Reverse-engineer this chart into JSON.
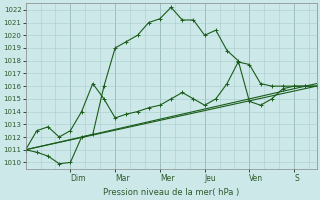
{
  "xlabel": "Pression niveau de la mer( hPa )",
  "background_color": "#cce8e8",
  "grid_color": "#aacccc",
  "line_color": "#1a5c1a",
  "ylim": [
    1009.5,
    1022.5
  ],
  "yticks": [
    1010,
    1011,
    1012,
    1013,
    1014,
    1015,
    1016,
    1017,
    1018,
    1019,
    1020,
    1021,
    1022
  ],
  "day_labels": [
    "Dim",
    "Mar",
    "Mer",
    "Jeu",
    "Ven",
    "S"
  ],
  "day_x": [
    24,
    48,
    72,
    96,
    120,
    144
  ],
  "xlim": [
    0,
    156
  ],
  "series1_x": [
    0,
    6,
    12,
    18,
    24,
    30,
    36,
    42,
    48,
    54,
    60,
    66,
    72,
    78,
    84,
    90,
    96,
    102,
    108,
    114,
    120,
    126,
    132,
    138,
    144,
    150,
    156
  ],
  "series1_y": [
    1011.0,
    1010.8,
    1010.5,
    1009.9,
    1010.0,
    1012.0,
    1012.2,
    1016.0,
    1019.0,
    1019.5,
    1020.0,
    1021.0,
    1021.3,
    1022.2,
    1021.2,
    1021.2,
    1020.0,
    1020.4,
    1018.8,
    1018.0,
    1014.8,
    1014.5,
    1015.0,
    1015.8,
    1016.0,
    1016.0,
    1016.0
  ],
  "series2_x": [
    0,
    6,
    12,
    18,
    24,
    30,
    36,
    42,
    48,
    54,
    60,
    66,
    72,
    78,
    84,
    90,
    96,
    102,
    108,
    114,
    120,
    126,
    132,
    138,
    144,
    150,
    156
  ],
  "series2_y": [
    1011.0,
    1012.5,
    1012.8,
    1012.0,
    1012.5,
    1014.0,
    1016.2,
    1015.0,
    1013.5,
    1013.8,
    1014.0,
    1014.3,
    1014.5,
    1015.0,
    1015.5,
    1015.0,
    1014.5,
    1015.0,
    1016.2,
    1017.9,
    1017.7,
    1016.2,
    1016.0,
    1016.0,
    1016.0,
    1016.0,
    1016.0
  ],
  "series3_x": [
    0,
    156
  ],
  "series3_y": [
    1011.0,
    1016.2
  ],
  "series4_x": [
    0,
    156
  ],
  "series4_y": [
    1011.0,
    1016.0
  ]
}
